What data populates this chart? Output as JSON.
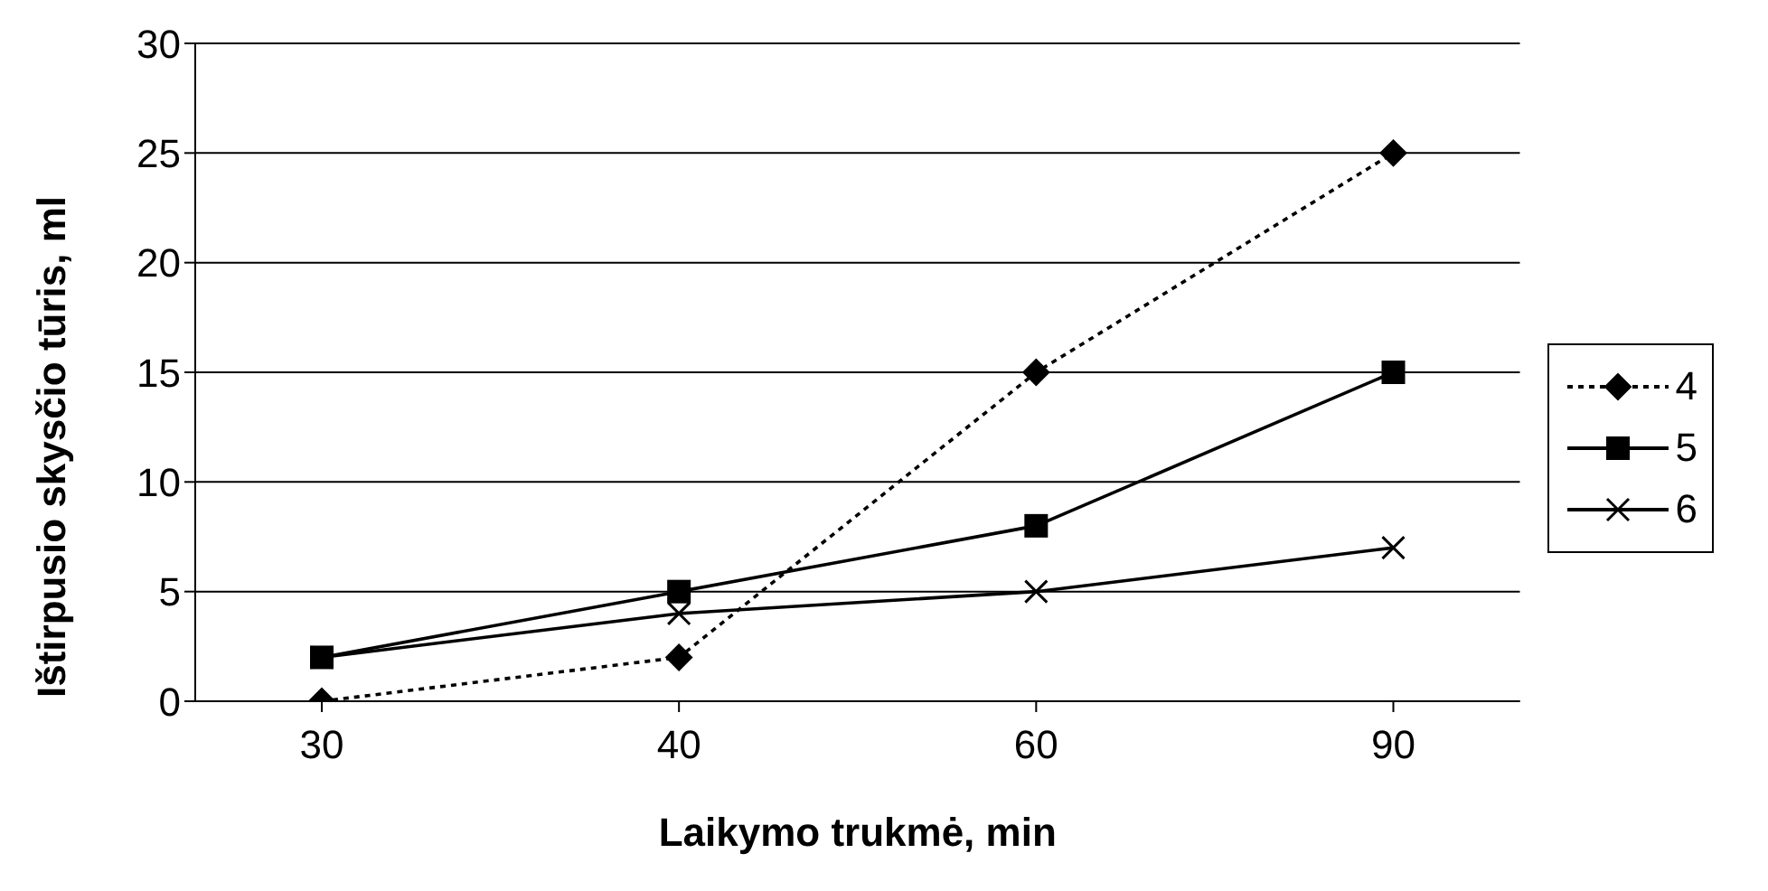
{
  "chart_data": {
    "type": "line",
    "xlabel": "Laikymo trukmė, min",
    "ylabel": "Ištirpusio skysčio tūris, ml",
    "categories": [
      "30",
      "40",
      "60",
      "90"
    ],
    "series": [
      {
        "name": "4",
        "color": "#000000",
        "values": [
          0,
          2,
          15,
          25
        ],
        "marker": "diamond",
        "line_style": "dotted"
      },
      {
        "name": "5",
        "color": "#000000",
        "values": [
          2,
          5,
          8,
          15
        ],
        "marker": "square",
        "line_style": "solid"
      },
      {
        "name": "6",
        "color": "#000000",
        "values": [
          2,
          4,
          5,
          7
        ],
        "marker": "cross",
        "line_style": "solid"
      }
    ],
    "ylim": [
      0,
      30
    ],
    "yticks": [
      0,
      5,
      10,
      15,
      20,
      25,
      30
    ],
    "grid": "y",
    "legend": "right"
  }
}
